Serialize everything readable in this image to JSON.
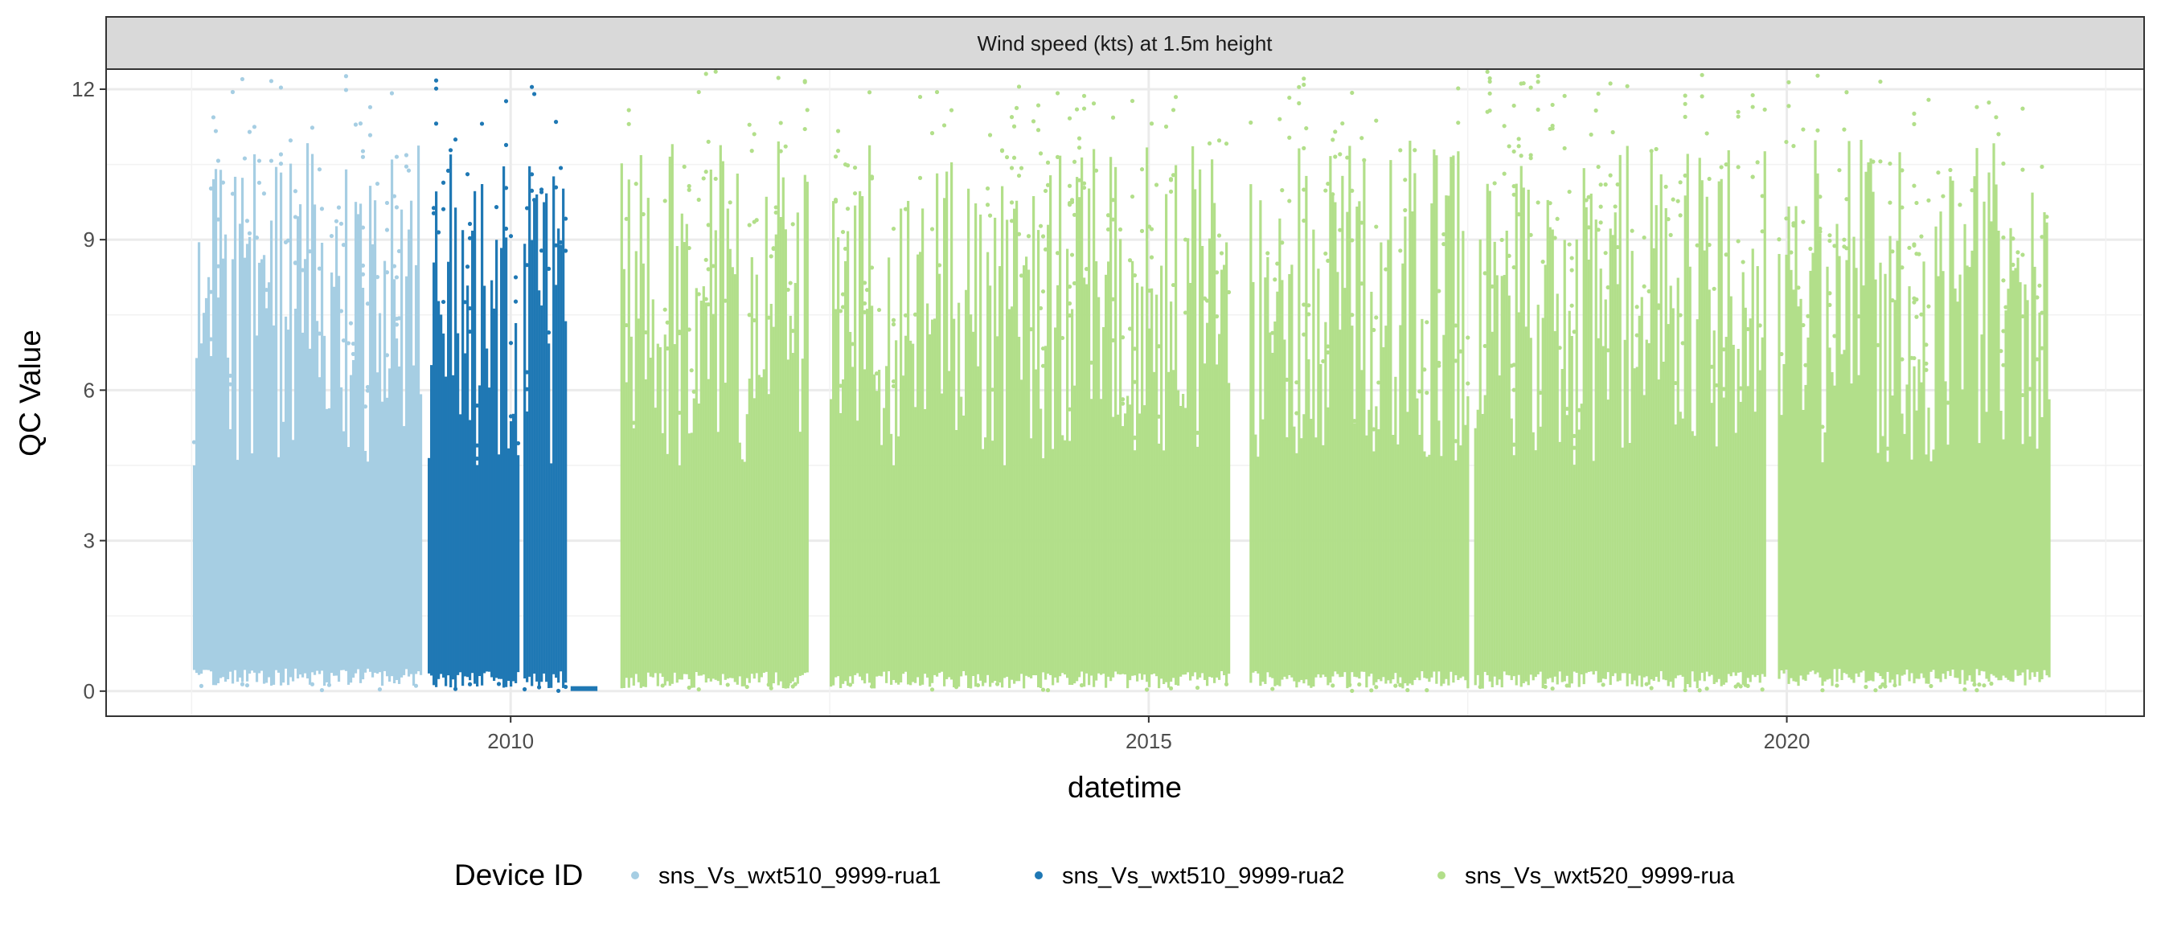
{
  "chart_data": {
    "type": "scatter",
    "facet_title": "Wind speed (kts) at 1.5m height",
    "xlabel": "datetime",
    "ylabel": "QC Value",
    "xlim": [
      2006.83,
      2022.8
    ],
    "ylim": [
      -0.5,
      12.4
    ],
    "x_ticks": [
      2010,
      2015,
      2020
    ],
    "x_tick_labels": [
      "2010",
      "2015",
      "2020"
    ],
    "y_ticks": [
      0,
      3,
      6,
      9,
      12
    ],
    "y_tick_labels": [
      "0",
      "3",
      "6",
      "9",
      "12"
    ],
    "grid": true,
    "legend": {
      "title": "Device ID",
      "position": "bottom",
      "entries": [
        "sns_Vs_wxt510_9999-rua1",
        "sns_Vs_wxt510_9999-rua2",
        "sns_Vs_wxt520_9999-rua"
      ]
    },
    "series": [
      {
        "name": "sns_Vs_wxt510_9999-rua1",
        "color": "#A6CEE3",
        "segments": [
          {
            "start": 2007.51,
            "end": 2009.29,
            "min": 0.1,
            "max": 12.4
          }
        ]
      },
      {
        "name": "sns_Vs_wxt510_9999-rua2",
        "color": "#1F78B4",
        "segments": [
          {
            "start": 2009.35,
            "end": 2010.05,
            "min": 0.05,
            "max": 12.4
          },
          {
            "start": 2010.1,
            "end": 2010.43,
            "min": 0.05,
            "max": 12.4
          },
          {
            "start": 2010.47,
            "end": 2010.68,
            "min": 0.0,
            "max": 0.05
          }
        ]
      },
      {
        "name": "sns_Vs_wxt520_9999-rua",
        "color": "#B2DF8A",
        "segments": [
          {
            "start": 2010.86,
            "end": 2012.32,
            "min": 0.05,
            "max": 12.4
          },
          {
            "start": 2012.5,
            "end": 2015.62,
            "min": 0.05,
            "max": 12.4
          },
          {
            "start": 2015.79,
            "end": 2017.5,
            "min": 0.05,
            "max": 12.4
          },
          {
            "start": 2017.55,
            "end": 2019.82,
            "min": 0.05,
            "max": 12.4
          },
          {
            "start": 2019.93,
            "end": 2022.06,
            "min": 0.1,
            "max": 12.4
          }
        ]
      }
    ]
  }
}
